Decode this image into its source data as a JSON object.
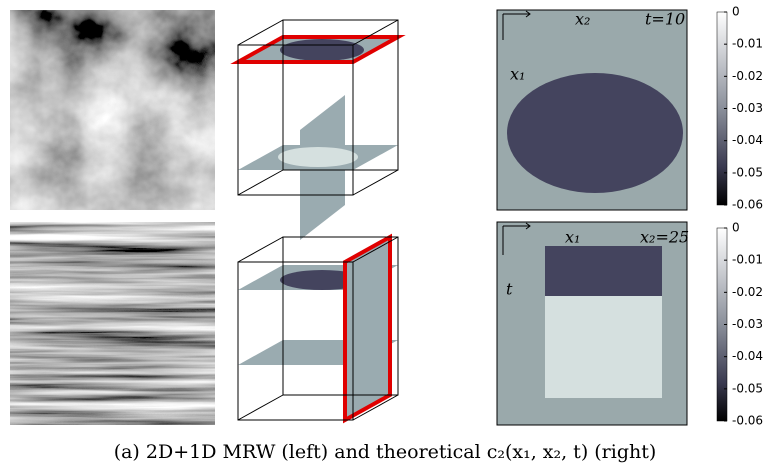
{
  "panels": {
    "top": {
      "labels": [
        "x₂",
        "t=10",
        "x₁"
      ]
    },
    "bottom": {
      "labels": [
        "x₁",
        "x₂=25",
        "t"
      ]
    }
  },
  "colorbar": {
    "ticks": [
      0,
      -0.01,
      -0.02,
      -0.03,
      -0.04,
      -0.05,
      -0.06
    ]
  },
  "caption": "(a) 2D+1D MRW (left) and theoretical c₂(x₁, x₂, t) (right)"
}
